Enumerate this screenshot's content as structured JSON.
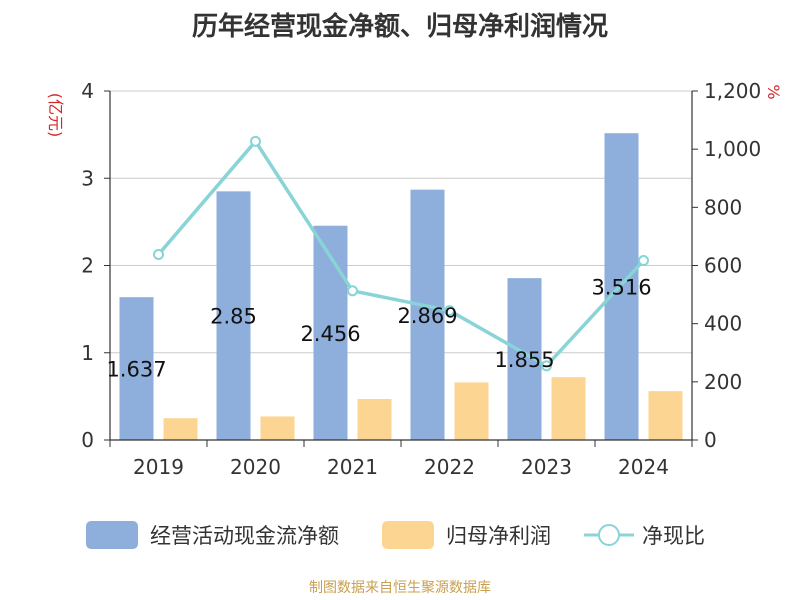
{
  "title": "历年经营现金净额、归母净利润情况",
  "source": "制图数据来自恒生聚源数据库",
  "colors": {
    "bar_cash": "#8eaedb",
    "bar_profit": "#fdd593",
    "line_ratio": "#88d4d6",
    "grid": "#cccccc",
    "axis": "#333333"
  },
  "chart_data": {
    "type": "bar+line",
    "categories": [
      "2019",
      "2020",
      "2021",
      "2022",
      "2023",
      "2024"
    ],
    "left_axis": {
      "unit": "(亿元)",
      "ylim": [
        0,
        4
      ],
      "ticks": [
        "0",
        "1",
        "2",
        "3",
        "4"
      ]
    },
    "right_axis": {
      "unit": "%",
      "ylim": [
        0,
        1200
      ],
      "ticks": [
        "0",
        "200",
        "400",
        "600",
        "800",
        "1,000",
        "1,200"
      ]
    },
    "series": [
      {
        "name": "经营活动现金流净额",
        "type": "bar",
        "axis": "left",
        "values": [
          1.637,
          2.85,
          2.456,
          2.869,
          1.855,
          3.516
        ],
        "labels": [
          "1.637",
          "2.85",
          "2.456",
          "2.869",
          "1.855",
          "3.516"
        ]
      },
      {
        "name": "归母净利润",
        "type": "bar",
        "axis": "left",
        "values": [
          0.25,
          0.27,
          0.47,
          0.66,
          0.72,
          0.56
        ]
      },
      {
        "name": "净现比",
        "type": "line",
        "axis": "right",
        "values": [
          638,
          1027,
          513,
          445,
          255,
          617
        ]
      }
    ],
    "legend_position": "bottom"
  }
}
